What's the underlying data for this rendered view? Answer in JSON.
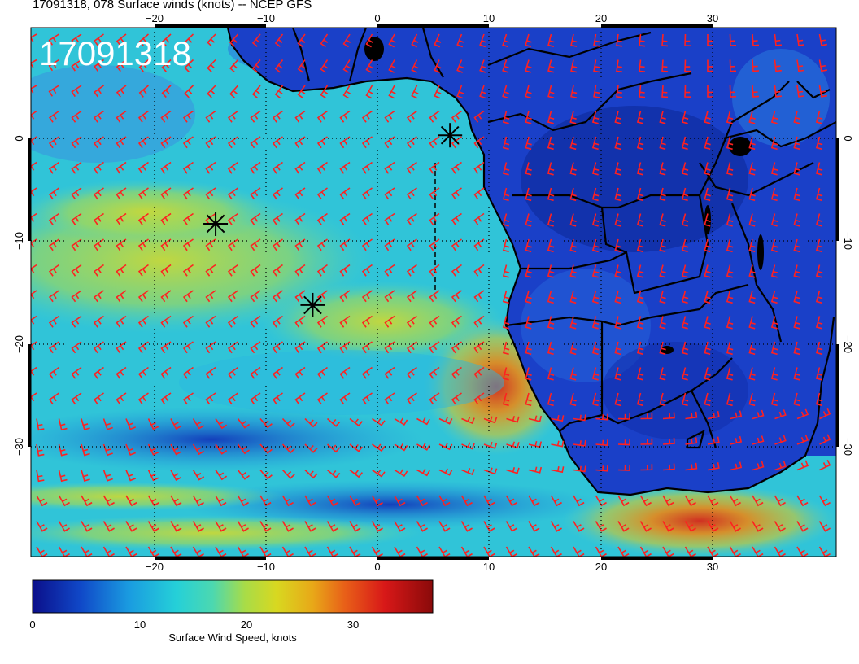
{
  "header": {
    "title": "17091318, 078 Surface winds (knots) -- NCEP GFS",
    "timestamp_overlay": "17091318"
  },
  "map": {
    "region": "Tropical/South Atlantic and southern Africa",
    "lon_range": [
      -30,
      41
    ],
    "lat_range": [
      10,
      -40
    ],
    "lon_ticks": [
      "−20",
      "−10",
      "0",
      "10",
      "20",
      "30"
    ],
    "lat_ticks": [
      "0",
      "−10",
      "−20",
      "−30"
    ],
    "wind_barb_color": "#ff2020",
    "markers": [
      {
        "lon": 6.5,
        "lat": 0.3,
        "symbol": "asterisk"
      },
      {
        "lon": -14.5,
        "lat": -8.3,
        "symbol": "asterisk"
      },
      {
        "lon": -5.8,
        "lat": -16.2,
        "symbol": "asterisk"
      }
    ]
  },
  "colorbar": {
    "label": "Surface Wind Speed, knots",
    "tick_labels": [
      "0",
      "10",
      "20",
      "30"
    ],
    "colors": [
      "#0b0f8a",
      "#1048c8",
      "#1a9be0",
      "#25d0d8",
      "#4cd8b0",
      "#a8dc48",
      "#d8d820",
      "#e8a818",
      "#e86018",
      "#d81818",
      "#8a0a0a"
    ]
  }
}
